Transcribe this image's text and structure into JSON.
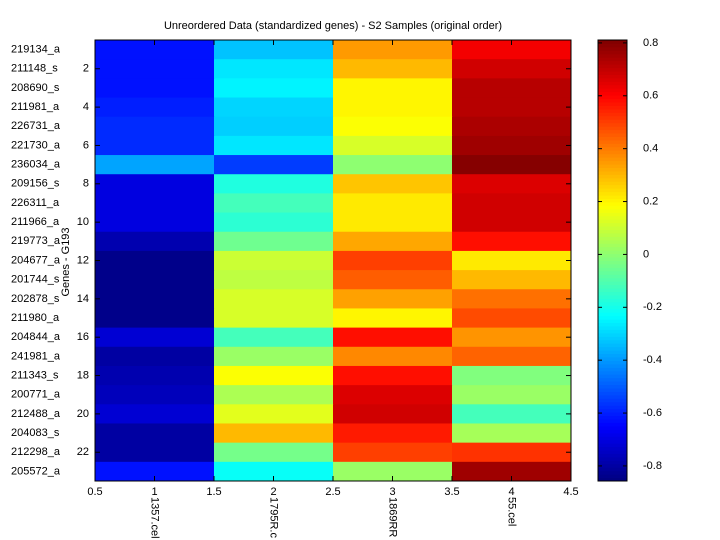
{
  "chart_data": {
    "type": "heatmap",
    "title": "Unreordered Data (standardized genes) - S2 Samples (original order)",
    "ylabel": "Genes - G193",
    "columns": [
      "1357.cel",
      "1795R.c",
      "1869RR",
      "55.cel"
    ],
    "rows": [
      "219134_a",
      "211148_s",
      "208690_s",
      "211981_a",
      "226731_a",
      "221730_a",
      "236034_a",
      "209156_s",
      "226311_a",
      "211966_a",
      "219773_a",
      "204677_a",
      "201744_s",
      "202878_s",
      "211980_a",
      "204844_a",
      "241981_a",
      "211343_s",
      "200771_a",
      "212488_a",
      "204083_s",
      "212298_a",
      "205572_a"
    ],
    "values": [
      [
        -0.62,
        -0.33,
        0.35,
        0.62
      ],
      [
        -0.62,
        -0.27,
        0.3,
        0.68
      ],
      [
        -0.62,
        -0.25,
        0.2,
        0.72
      ],
      [
        -0.6,
        -0.3,
        0.2,
        0.72
      ],
      [
        -0.58,
        -0.31,
        0.18,
        0.74
      ],
      [
        -0.58,
        -0.27,
        0.12,
        0.76
      ],
      [
        -0.38,
        -0.55,
        0.0,
        0.8
      ],
      [
        -0.7,
        -0.18,
        0.28,
        0.66
      ],
      [
        -0.7,
        -0.12,
        0.22,
        0.68
      ],
      [
        -0.7,
        -0.16,
        0.22,
        0.68
      ],
      [
        -0.78,
        -0.05,
        0.33,
        0.58
      ],
      [
        -0.84,
        0.1,
        0.5,
        0.22
      ],
      [
        -0.84,
        0.08,
        0.45,
        0.3
      ],
      [
        -0.84,
        0.12,
        0.34,
        0.42
      ],
      [
        -0.84,
        0.12,
        0.2,
        0.48
      ],
      [
        -0.72,
        -0.12,
        0.58,
        0.36
      ],
      [
        -0.8,
        0.02,
        0.38,
        0.44
      ],
      [
        -0.78,
        0.18,
        0.58,
        -0.02
      ],
      [
        -0.76,
        0.05,
        0.66,
        0.02
      ],
      [
        -0.72,
        0.14,
        0.68,
        -0.12
      ],
      [
        -0.8,
        0.3,
        0.56,
        0.04
      ],
      [
        -0.8,
        -0.04,
        0.5,
        0.52
      ],
      [
        -0.62,
        -0.22,
        0.02,
        0.76
      ]
    ],
    "xlim": [
      0.5,
      4.5
    ],
    "xticks": [
      0.5,
      1,
      1.5,
      2,
      2.5,
      3,
      3.5,
      4,
      4.5
    ],
    "ylim": [
      0.5,
      23.5
    ],
    "yticks": [
      2,
      4,
      6,
      8,
      10,
      12,
      14,
      16,
      18,
      20,
      22
    ],
    "colormap": "jet",
    "clim": [
      -0.857,
      0.811
    ],
    "cticks": [
      -0.8,
      -0.6,
      -0.4,
      -0.2,
      0,
      0.2,
      0.4,
      0.6,
      0.8
    ]
  }
}
